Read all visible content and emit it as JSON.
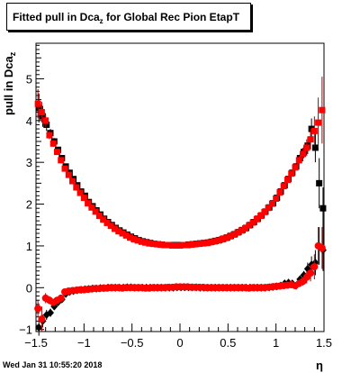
{
  "title_main": "Fitted pull in Dca",
  "title_sub": "z",
  "title_rest": " for Global Rec Pion EtapT",
  "ylabel_main": "pull in Dca",
  "ylabel_sub": "z",
  "xlabel": "η",
  "footer": "Wed Jan 31 10:55:20 2018",
  "chart_data": {
    "type": "scatter",
    "xlim": [
      -1.5,
      1.5
    ],
    "ylim": [
      -1.05,
      5.85
    ],
    "xticks": [
      -1.5,
      -1,
      -0.5,
      0,
      0.5,
      1,
      1.5
    ],
    "xtick_labels": [
      "−1.5",
      "−1",
      "−0.5",
      "0",
      "0.5",
      "1",
      "1.5"
    ],
    "yticks": [
      -1,
      0,
      1,
      2,
      3,
      4,
      5
    ],
    "ytick_labels": [
      "−1",
      "0",
      "1",
      "2",
      "3",
      "4",
      "5"
    ],
    "grid": false,
    "series": [
      {
        "marker": "square",
        "color": "#000000",
        "err_color": "#000000",
        "x": [
          -1.47,
          -1.43,
          -1.39,
          -1.35,
          -1.31,
          -1.27,
          -1.23,
          -1.19,
          -1.15,
          -1.11,
          -1.07,
          -1.03,
          -0.99,
          -0.95,
          -0.91,
          -0.87,
          -0.83,
          -0.79,
          -0.75,
          -0.71,
          -0.67,
          -0.63,
          -0.59,
          -0.55,
          -0.51,
          -0.47,
          -0.43,
          -0.39,
          -0.35,
          -0.31,
          -0.27,
          -0.23,
          -0.19,
          -0.15,
          -0.11,
          -0.07,
          -0.03,
          0.01,
          0.05,
          0.09,
          0.13,
          0.17,
          0.21,
          0.25,
          0.29,
          0.33,
          0.37,
          0.41,
          0.45,
          0.49,
          0.53,
          0.57,
          0.61,
          0.65,
          0.69,
          0.73,
          0.77,
          0.81,
          0.85,
          0.89,
          0.93,
          0.97,
          1.01,
          1.05,
          1.09,
          1.13,
          1.17,
          1.21,
          1.25,
          1.29,
          1.33,
          1.37,
          1.41,
          1.45,
          1.49
        ],
        "y": [
          4.3,
          4.1,
          3.9,
          3.7,
          3.5,
          3.3,
          3.1,
          2.9,
          2.75,
          2.6,
          2.45,
          2.3,
          2.2,
          2.05,
          1.95,
          1.85,
          1.75,
          1.65,
          1.57,
          1.5,
          1.43,
          1.37,
          1.32,
          1.27,
          1.22,
          1.18,
          1.14,
          1.11,
          1.09,
          1.07,
          1.05,
          1.04,
          1.03,
          1.02,
          1.02,
          1.02,
          1.02,
          1.02,
          1.02,
          1.03,
          1.04,
          1.05,
          1.06,
          1.07,
          1.08,
          1.1,
          1.12,
          1.14,
          1.17,
          1.2,
          1.24,
          1.28,
          1.33,
          1.38,
          1.43,
          1.5,
          1.57,
          1.65,
          1.73,
          1.82,
          1.92,
          2.02,
          2.15,
          2.3,
          2.45,
          2.6,
          2.75,
          2.9,
          3.1,
          3.25,
          3.4,
          3.8,
          3.35,
          2.5,
          1.9
        ],
        "err": [
          0.35,
          0.25,
          0.15,
          0.1,
          0.08,
          0.06,
          0.05,
          0.05,
          0.04,
          0.04,
          0.04,
          0.03,
          0.03,
          0.03,
          0.03,
          0.03,
          0.03,
          0.03,
          0.03,
          0.03,
          0.03,
          0.03,
          0.03,
          0.03,
          0.03,
          0.03,
          0.03,
          0.03,
          0.03,
          0.03,
          0.03,
          0.03,
          0.03,
          0.03,
          0.03,
          0.03,
          0.03,
          0.03,
          0.03,
          0.03,
          0.03,
          0.03,
          0.03,
          0.03,
          0.03,
          0.03,
          0.03,
          0.03,
          0.03,
          0.03,
          0.03,
          0.03,
          0.03,
          0.03,
          0.03,
          0.03,
          0.03,
          0.03,
          0.04,
          0.04,
          0.04,
          0.04,
          0.05,
          0.05,
          0.06,
          0.06,
          0.07,
          0.08,
          0.1,
          0.15,
          0.2,
          0.25,
          0.35,
          0.6,
          0.5
        ]
      },
      {
        "marker": "square",
        "color": "#ff0000",
        "err_color": "#b00000",
        "x": [
          -1.48,
          -1.44,
          -1.4,
          -1.36,
          -1.32,
          -1.28,
          -1.24,
          -1.2,
          -1.16,
          -1.12,
          -1.08,
          -1.04,
          -1.0,
          -0.96,
          -0.92,
          -0.88,
          -0.84,
          -0.8,
          -0.76,
          -0.72,
          -0.68,
          -0.64,
          -0.6,
          -0.56,
          -0.52,
          -0.48,
          -0.44,
          -0.4,
          -0.36,
          -0.32,
          -0.28,
          -0.24,
          -0.2,
          -0.16,
          -0.12,
          -0.08,
          -0.04,
          0.0,
          0.04,
          0.08,
          0.12,
          0.16,
          0.2,
          0.24,
          0.28,
          0.32,
          0.36,
          0.4,
          0.44,
          0.48,
          0.52,
          0.56,
          0.6,
          0.64,
          0.68,
          0.72,
          0.76,
          0.8,
          0.84,
          0.88,
          0.92,
          0.96,
          1.0,
          1.04,
          1.08,
          1.12,
          1.16,
          1.2,
          1.24,
          1.28,
          1.32,
          1.36,
          1.4,
          1.44,
          1.48
        ],
        "y": [
          4.4,
          4.2,
          4.0,
          3.65,
          3.45,
          3.25,
          3.05,
          2.85,
          2.7,
          2.55,
          2.4,
          2.27,
          2.15,
          2.02,
          1.92,
          1.82,
          1.72,
          1.63,
          1.55,
          1.48,
          1.41,
          1.35,
          1.3,
          1.25,
          1.2,
          1.16,
          1.13,
          1.1,
          1.08,
          1.06,
          1.05,
          1.04,
          1.03,
          1.02,
          1.02,
          1.01,
          1.01,
          1.01,
          1.02,
          1.02,
          1.03,
          1.04,
          1.05,
          1.06,
          1.07,
          1.09,
          1.11,
          1.13,
          1.16,
          1.19,
          1.23,
          1.27,
          1.32,
          1.37,
          1.42,
          1.49,
          1.56,
          1.64,
          1.72,
          1.81,
          1.91,
          2.01,
          2.13,
          2.28,
          2.43,
          2.58,
          2.73,
          2.88,
          3.05,
          3.2,
          3.35,
          3.55,
          3.75,
          3.95,
          4.25
        ],
        "err": [
          0.35,
          0.25,
          0.15,
          0.1,
          0.08,
          0.06,
          0.05,
          0.05,
          0.04,
          0.04,
          0.04,
          0.03,
          0.03,
          0.03,
          0.03,
          0.03,
          0.03,
          0.03,
          0.03,
          0.03,
          0.03,
          0.03,
          0.03,
          0.03,
          0.03,
          0.03,
          0.03,
          0.03,
          0.03,
          0.03,
          0.03,
          0.03,
          0.03,
          0.03,
          0.03,
          0.03,
          0.03,
          0.03,
          0.03,
          0.03,
          0.03,
          0.03,
          0.03,
          0.03,
          0.03,
          0.03,
          0.03,
          0.03,
          0.03,
          0.03,
          0.03,
          0.03,
          0.03,
          0.03,
          0.03,
          0.03,
          0.03,
          0.03,
          0.04,
          0.04,
          0.04,
          0.04,
          0.05,
          0.05,
          0.06,
          0.06,
          0.07,
          0.08,
          0.1,
          0.15,
          0.2,
          0.25,
          0.35,
          0.6,
          0.8
        ]
      },
      {
        "marker": "diamond",
        "color": "#000000",
        "err_color": "#000000",
        "x": [
          -1.47,
          -1.43,
          -1.39,
          -1.35,
          -1.31,
          -1.27,
          -1.23,
          -1.19,
          -1.15,
          -1.11,
          -1.07,
          -1.03,
          -0.99,
          -0.95,
          -0.91,
          -0.87,
          -0.83,
          -0.79,
          -0.75,
          -0.71,
          -0.67,
          -0.63,
          -0.59,
          -0.55,
          -0.51,
          -0.47,
          -0.43,
          -0.39,
          -0.35,
          -0.31,
          -0.27,
          -0.23,
          -0.19,
          -0.15,
          -0.11,
          -0.07,
          -0.03,
          0.01,
          0.05,
          0.09,
          0.13,
          0.17,
          0.21,
          0.25,
          0.29,
          0.33,
          0.37,
          0.41,
          0.45,
          0.49,
          0.53,
          0.57,
          0.61,
          0.65,
          0.69,
          0.73,
          0.77,
          0.81,
          0.85,
          0.89,
          0.93,
          0.97,
          1.01,
          1.05,
          1.09,
          1.13,
          1.17,
          1.21,
          1.25,
          1.29,
          1.33,
          1.37,
          1.41,
          1.45,
          1.49
        ],
        "y": [
          -0.95,
          -0.8,
          -0.65,
          -0.6,
          -0.45,
          -0.35,
          -0.28,
          -0.15,
          -0.1,
          -0.08,
          -0.06,
          -0.05,
          -0.04,
          -0.03,
          -0.02,
          -0.02,
          -0.01,
          -0.01,
          0.0,
          0.0,
          0.0,
          0.0,
          0.0,
          0.01,
          0.01,
          0.0,
          0.0,
          0.0,
          0.0,
          0.0,
          0.0,
          0.0,
          0.0,
          0.0,
          0.0,
          0.0,
          0.01,
          0.01,
          0.01,
          0.01,
          0.01,
          0.01,
          0.0,
          0.0,
          0.0,
          0.0,
          0.0,
          0.0,
          0.0,
          0.0,
          0.0,
          0.0,
          0.0,
          0.0,
          0.0,
          0.0,
          0.0,
          0.0,
          0.0,
          0.0,
          0.01,
          0.02,
          0.03,
          0.05,
          0.1,
          0.12,
          0.1,
          0.05,
          0.2,
          0.3,
          0.45,
          0.55,
          0.6,
          1.0,
          0.9
        ],
        "err": [
          0.2,
          0.15,
          0.12,
          0.1,
          0.08,
          0.06,
          0.05,
          0.04,
          0.03,
          0.03,
          0.03,
          0.02,
          0.02,
          0.02,
          0.02,
          0.02,
          0.02,
          0.02,
          0.02,
          0.02,
          0.02,
          0.02,
          0.02,
          0.02,
          0.02,
          0.02,
          0.02,
          0.02,
          0.02,
          0.02,
          0.02,
          0.02,
          0.02,
          0.02,
          0.02,
          0.02,
          0.02,
          0.02,
          0.02,
          0.02,
          0.02,
          0.02,
          0.02,
          0.02,
          0.02,
          0.02,
          0.02,
          0.02,
          0.02,
          0.02,
          0.02,
          0.02,
          0.02,
          0.02,
          0.02,
          0.02,
          0.02,
          0.02,
          0.02,
          0.02,
          0.03,
          0.03,
          0.03,
          0.03,
          0.04,
          0.04,
          0.05,
          0.06,
          0.08,
          0.1,
          0.15,
          0.2,
          0.3,
          0.45,
          0.5
        ]
      },
      {
        "marker": "circle",
        "color": "#ff0000",
        "err_color": "#b00000",
        "x": [
          -1.48,
          -1.44,
          -1.4,
          -1.36,
          -1.32,
          -1.28,
          -1.24,
          -1.2,
          -1.16,
          -1.12,
          -1.08,
          -1.04,
          -1.0,
          -0.96,
          -0.92,
          -0.88,
          -0.84,
          -0.8,
          -0.76,
          -0.72,
          -0.68,
          -0.64,
          -0.6,
          -0.56,
          -0.52,
          -0.48,
          -0.44,
          -0.4,
          -0.36,
          -0.32,
          -0.28,
          -0.24,
          -0.2,
          -0.16,
          -0.12,
          -0.08,
          -0.04,
          0.0,
          0.04,
          0.08,
          0.12,
          0.16,
          0.2,
          0.24,
          0.28,
          0.32,
          0.36,
          0.4,
          0.44,
          0.48,
          0.52,
          0.56,
          0.6,
          0.64,
          0.68,
          0.72,
          0.76,
          0.8,
          0.84,
          0.88,
          0.92,
          0.96,
          1.0,
          1.04,
          1.08,
          1.12,
          1.16,
          1.2,
          1.24,
          1.28,
          1.32,
          1.36,
          1.4,
          1.44,
          1.48
        ],
        "y": [
          -0.5,
          -0.75,
          -0.25,
          -0.3,
          -0.35,
          -0.3,
          -0.25,
          -0.1,
          -0.08,
          -0.07,
          -0.06,
          -0.05,
          -0.05,
          -0.04,
          -0.03,
          -0.02,
          -0.02,
          -0.01,
          -0.01,
          0.0,
          0.0,
          0.0,
          -0.01,
          0.0,
          0.0,
          0.0,
          0.0,
          0.0,
          -0.01,
          -0.01,
          0.0,
          0.0,
          0.0,
          0.0,
          0.01,
          0.01,
          0.02,
          0.02,
          0.02,
          0.02,
          0.01,
          0.01,
          0.01,
          0.01,
          0.0,
          0.0,
          0.0,
          0.0,
          0.0,
          0.0,
          0.0,
          0.0,
          0.0,
          0.0,
          0.0,
          -0.01,
          0.0,
          0.0,
          0.0,
          0.0,
          0.01,
          0.02,
          0.03,
          0.04,
          0.05,
          0.06,
          0.07,
          0.05,
          0.1,
          0.15,
          0.25,
          0.35,
          0.5,
          1.0,
          0.95
        ],
        "err": [
          0.2,
          0.3,
          0.12,
          0.1,
          0.08,
          0.06,
          0.05,
          0.04,
          0.03,
          0.03,
          0.03,
          0.02,
          0.02,
          0.02,
          0.02,
          0.02,
          0.02,
          0.02,
          0.02,
          0.02,
          0.02,
          0.02,
          0.02,
          0.02,
          0.02,
          0.02,
          0.02,
          0.02,
          0.02,
          0.02,
          0.02,
          0.02,
          0.02,
          0.02,
          0.02,
          0.02,
          0.02,
          0.02,
          0.02,
          0.02,
          0.02,
          0.02,
          0.02,
          0.02,
          0.02,
          0.02,
          0.02,
          0.02,
          0.02,
          0.02,
          0.02,
          0.02,
          0.02,
          0.02,
          0.02,
          0.02,
          0.02,
          0.02,
          0.02,
          0.02,
          0.03,
          0.03,
          0.03,
          0.03,
          0.04,
          0.04,
          0.05,
          0.06,
          0.08,
          0.1,
          0.15,
          0.2,
          0.3,
          0.45,
          0.5
        ]
      }
    ]
  }
}
